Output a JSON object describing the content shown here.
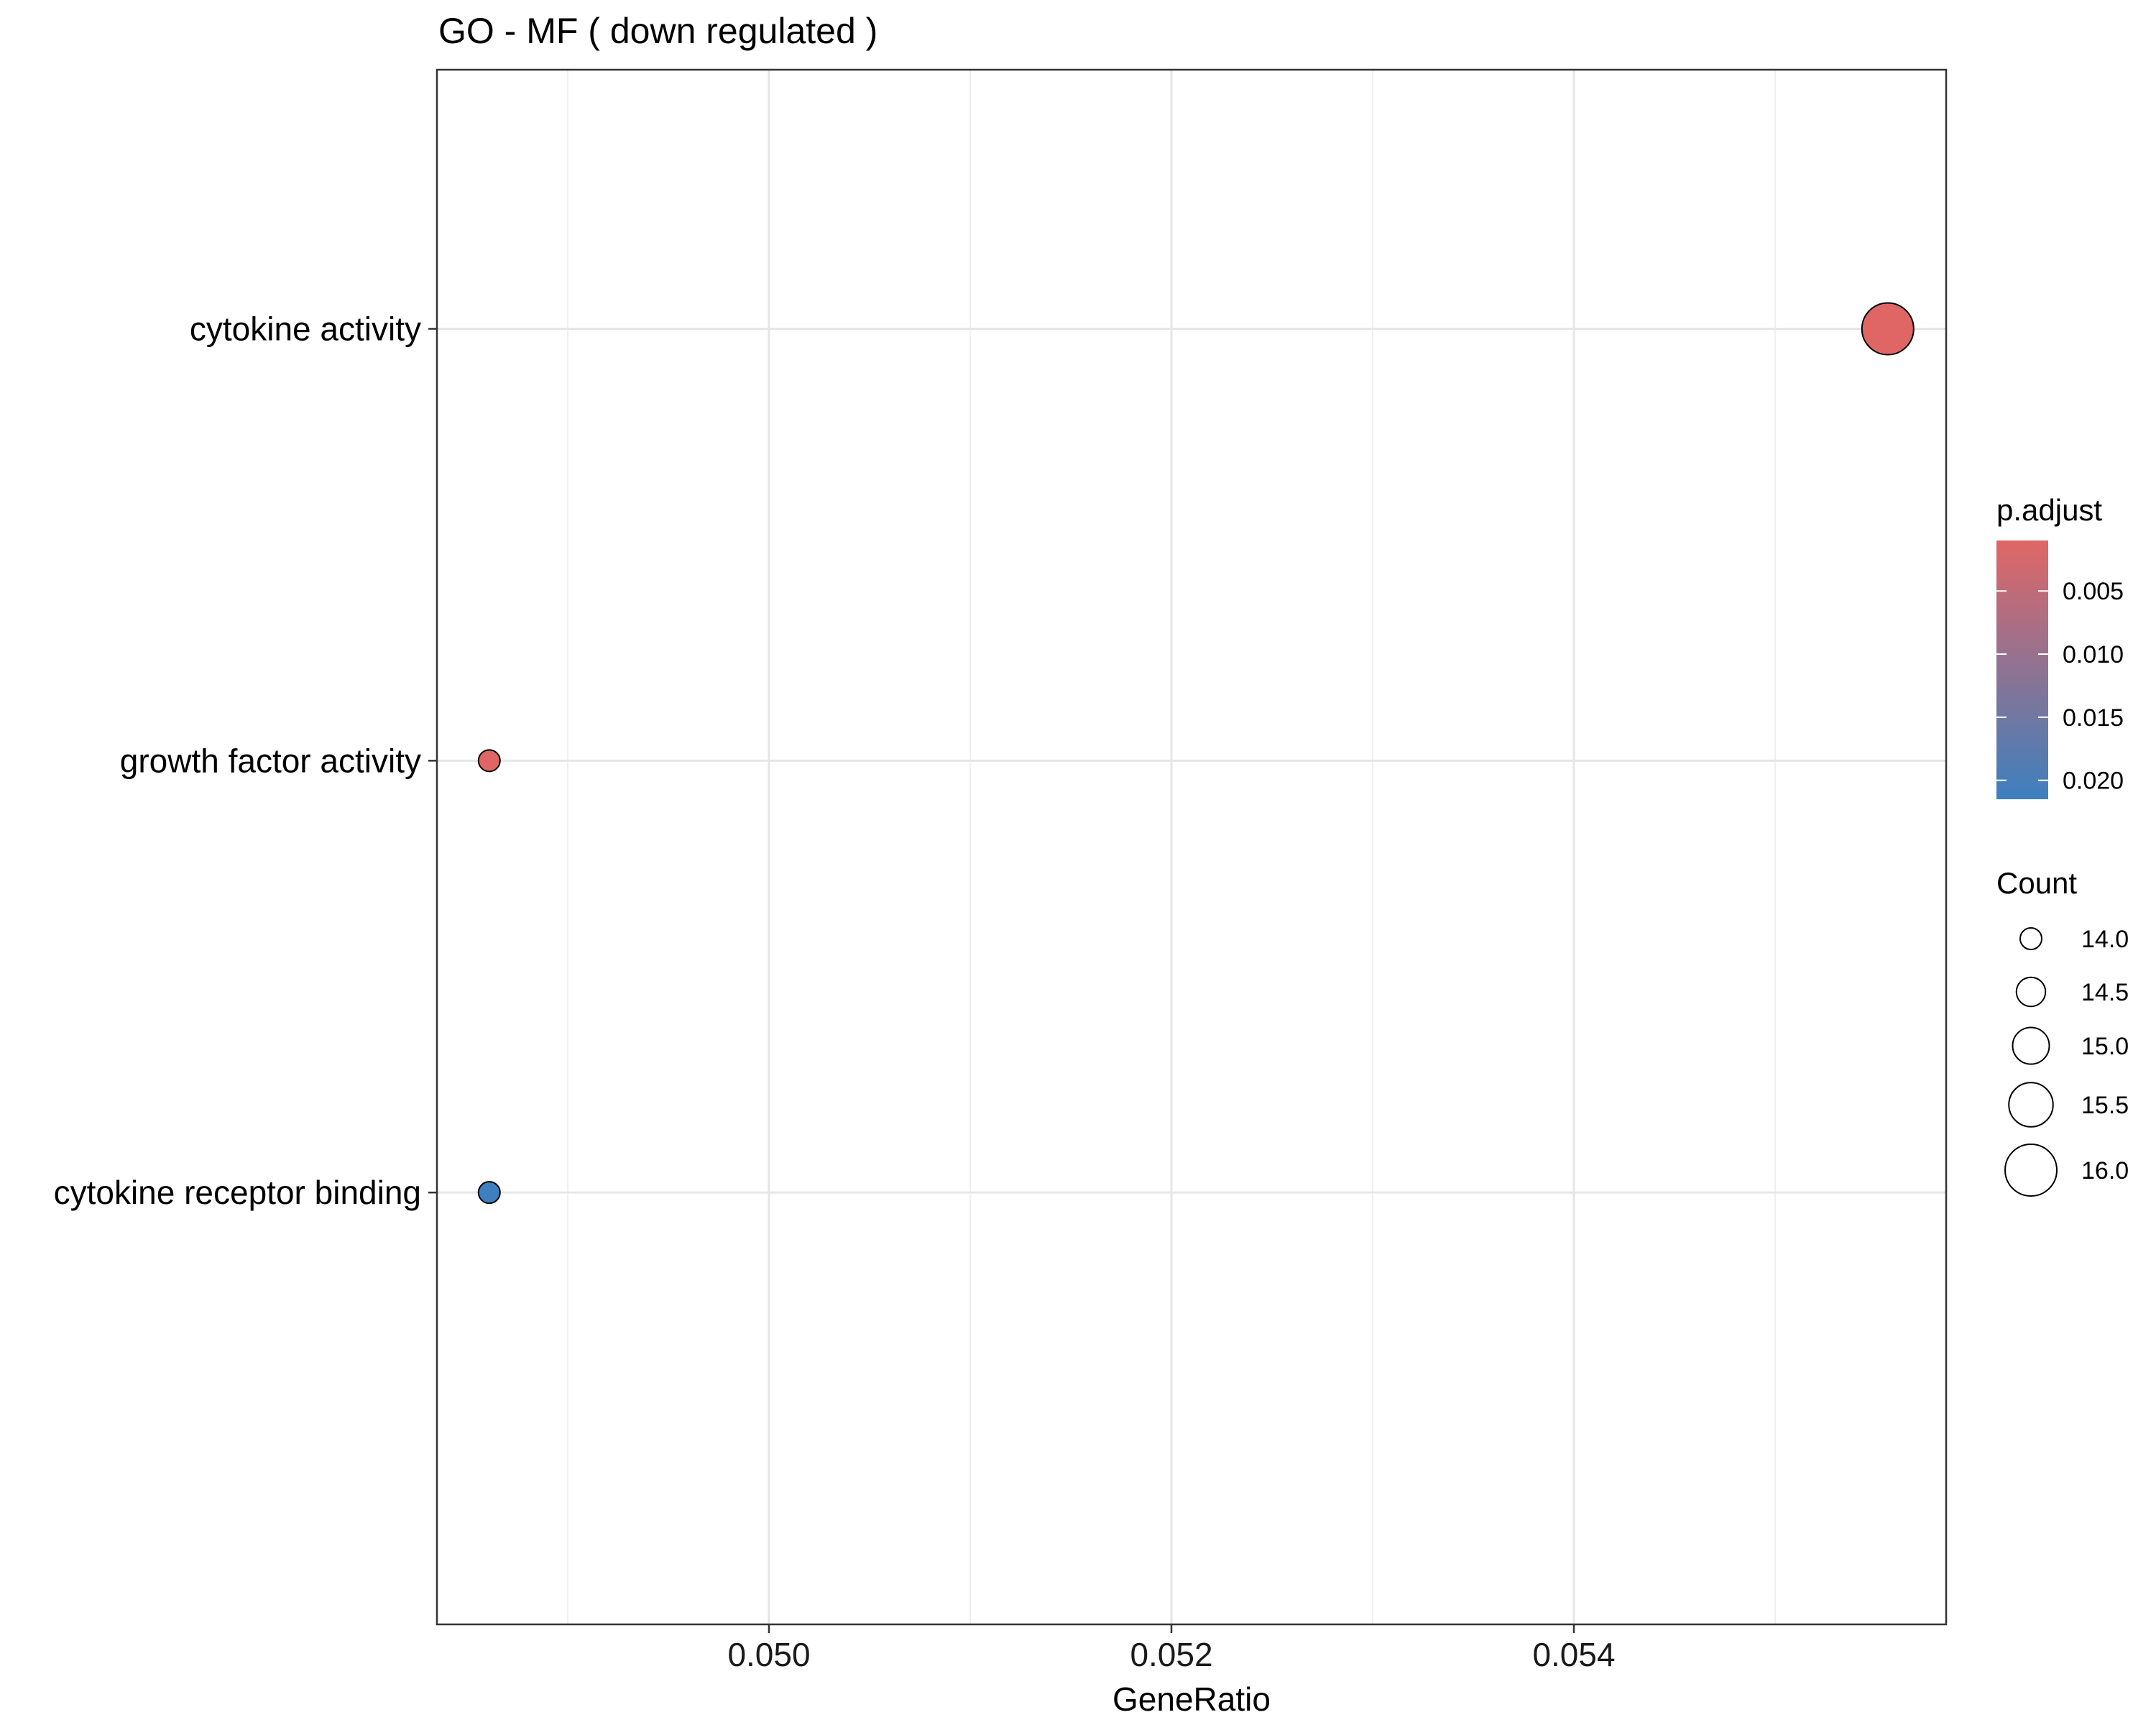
{
  "chart_data": {
    "type": "scatter",
    "title": "GO - MF ( down regulated )",
    "xlabel": "GeneRatio",
    "ylabel": "",
    "xlim": [
      0.04835,
      0.05585
    ],
    "xticks": [
      0.05,
      0.052,
      0.054
    ],
    "xtick_labels": [
      "0.050",
      "0.052",
      "0.054"
    ],
    "x_minor_gridlines": [
      0.049,
      0.051,
      0.053,
      0.055
    ],
    "categories": [
      "cytokine activity",
      "growth factor activity",
      "cytokine receptor binding"
    ],
    "points": [
      {
        "term": "cytokine activity",
        "gene_ratio": 0.05556,
        "count": 16,
        "p_adjust": 0.001
      },
      {
        "term": "growth factor activity",
        "gene_ratio": 0.04861,
        "count": 14,
        "p_adjust": 0.001
      },
      {
        "term": "cytokine receptor binding",
        "gene_ratio": 0.04861,
        "count": 14,
        "p_adjust": 0.0215
      }
    ],
    "grid": true,
    "color_legend": {
      "title": "p.adjust",
      "ticks": [
        0.005,
        0.01,
        0.015,
        0.02
      ],
      "tick_labels": [
        "0.005",
        "0.010",
        "0.015",
        "0.020"
      ],
      "range": [
        0.001,
        0.0215
      ],
      "low_color": "#e06666",
      "high_color": "#3d7fbf",
      "placement": "right"
    },
    "size_legend": {
      "title": "Count",
      "values": [
        14.0,
        14.5,
        15.0,
        15.5,
        16.0
      ],
      "labels": [
        "14.0",
        "14.5",
        "15.0",
        "15.5",
        "16.0"
      ],
      "range": [
        14,
        16
      ],
      "placement": "right"
    }
  }
}
